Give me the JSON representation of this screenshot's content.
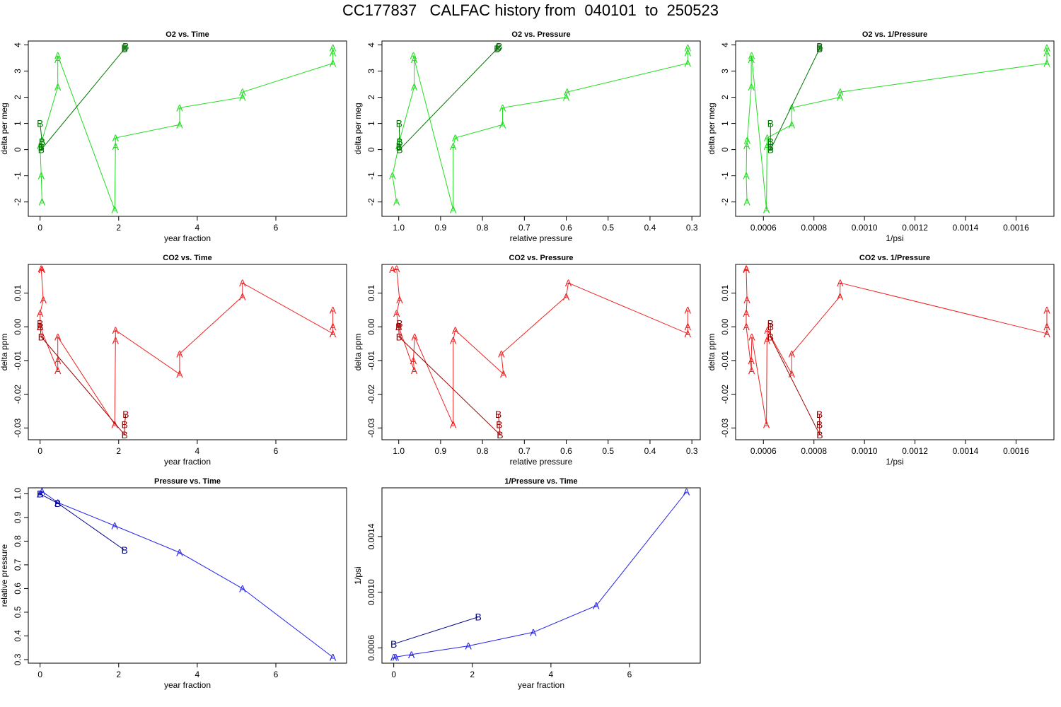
{
  "page_title": "CC177837   CALFAC history from  040101  to  250523",
  "colors": {
    "o2_A": "#22dd22",
    "o2_B": "#007700",
    "co2_A": "#ee2222",
    "co2_B": "#990000",
    "p_A": "#2222ee",
    "p_B": "#000088"
  },
  "chart_data": [
    {
      "type": "scatter",
      "title": "O2 vs. Time",
      "xlabel": "year fraction",
      "ylabel": "delta per meg",
      "xlim": [
        -0.3,
        7.8
      ],
      "ylim": [
        -2.55,
        4.15
      ],
      "xticks": [
        0,
        2,
        4,
        6
      ],
      "yticks": [
        -2,
        -1,
        0,
        1,
        2,
        3,
        4
      ],
      "series": [
        {
          "name": "A",
          "color": "o2_A",
          "points": [
            [
              0.05,
              -2.0
            ],
            [
              0.03,
              -1.0
            ],
            [
              0.0,
              0.15
            ],
            [
              0.05,
              0.35
            ],
            [
              0.45,
              2.4
            ],
            [
              0.45,
              3.45
            ],
            [
              0.45,
              3.6
            ],
            [
              1.9,
              -2.3
            ],
            [
              1.92,
              0.12
            ],
            [
              1.92,
              0.45
            ],
            [
              3.55,
              0.95
            ],
            [
              3.55,
              1.6
            ],
            [
              5.15,
              2.0
            ],
            [
              5.15,
              2.2
            ],
            [
              7.45,
              3.3
            ],
            [
              7.45,
              3.7
            ],
            [
              7.45,
              3.9
            ]
          ]
        },
        {
          "name": "B",
          "color": "o2_B",
          "points": [
            [
              0.0,
              1.0
            ],
            [
              0.05,
              0.3
            ],
            [
              0.03,
              0.1
            ],
            [
              0.03,
              0.0
            ],
            [
              2.15,
              3.85
            ],
            [
              2.15,
              3.9
            ],
            [
              2.18,
              3.95
            ]
          ]
        }
      ]
    },
    {
      "type": "scatter",
      "title": "O2 vs. Pressure",
      "xlabel": "relative pressure",
      "ylabel": "delta per meg",
      "xlim": [
        1.04,
        0.28
      ],
      "ylim": [
        -2.55,
        4.15
      ],
      "xticks": [
        1.0,
        0.9,
        0.8,
        0.7,
        0.6,
        0.5,
        0.4,
        0.3
      ],
      "xtick_labels": [
        "1.0",
        "0.9",
        "0.8",
        "0.7",
        "0.6",
        "0.5",
        "0.4",
        "0.3"
      ],
      "yticks": [
        -2,
        -1,
        0,
        1,
        2,
        3,
        4
      ],
      "series": [
        {
          "name": "A",
          "color": "o2_A",
          "points": [
            [
              1.005,
              -2.0
            ],
            [
              1.015,
              -1.0
            ],
            [
              1.0,
              0.15
            ],
            [
              0.998,
              0.35
            ],
            [
              0.963,
              2.4
            ],
            [
              0.963,
              3.45
            ],
            [
              0.965,
              3.6
            ],
            [
              0.87,
              -2.3
            ],
            [
              0.87,
              0.12
            ],
            [
              0.865,
              0.45
            ],
            [
              0.752,
              0.95
            ],
            [
              0.752,
              1.6
            ],
            [
              0.6,
              2.0
            ],
            [
              0.598,
              2.2
            ],
            [
              0.31,
              3.3
            ],
            [
              0.31,
              3.7
            ],
            [
              0.31,
              3.9
            ]
          ]
        },
        {
          "name": "B",
          "color": "o2_B",
          "points": [
            [
              0.999,
              1.0
            ],
            [
              0.998,
              0.3
            ],
            [
              0.999,
              0.1
            ],
            [
              0.998,
              0.0
            ],
            [
              0.765,
              3.85
            ],
            [
              0.762,
              3.9
            ],
            [
              0.76,
              3.95
            ]
          ]
        }
      ]
    },
    {
      "type": "scatter",
      "title": "O2 vs. 1/Pressure",
      "xlabel": "1/psi",
      "ylabel": "delta per meg",
      "xlim": [
        0.00049,
        0.00175
      ],
      "ylim": [
        -2.55,
        4.15
      ],
      "xticks": [
        0.0006,
        0.0008,
        0.001,
        0.0012,
        0.0014,
        0.0016
      ],
      "xtick_labels": [
        "0.0006",
        "0.0008",
        "0.0010",
        "0.0012",
        "0.0014",
        "0.0016"
      ],
      "yticks": [
        -2,
        -1,
        0,
        1,
        2,
        3,
        4
      ],
      "series": [
        {
          "name": "A",
          "color": "o2_A",
          "points": [
            [
              0.000535,
              -2.0
            ],
            [
              0.000532,
              -1.0
            ],
            [
              0.000534,
              0.15
            ],
            [
              0.000536,
              0.35
            ],
            [
              0.000552,
              2.4
            ],
            [
              0.000552,
              3.45
            ],
            [
              0.000553,
              3.6
            ],
            [
              0.000612,
              -2.3
            ],
            [
              0.000614,
              0.12
            ],
            [
              0.000615,
              0.45
            ],
            [
              0.000712,
              0.95
            ],
            [
              0.000712,
              1.6
            ],
            [
              0.000903,
              2.0
            ],
            [
              0.000904,
              2.2
            ],
            [
              0.001722,
              3.3
            ],
            [
              0.001722,
              3.7
            ],
            [
              0.001722,
              3.9
            ]
          ]
        },
        {
          "name": "B",
          "color": "o2_B",
          "points": [
            [
              0.000628,
              1.0
            ],
            [
              0.000628,
              0.3
            ],
            [
              0.000628,
              0.1
            ],
            [
              0.000628,
              0.0
            ],
            [
              0.000822,
              3.85
            ],
            [
              0.000822,
              3.9
            ],
            [
              0.000823,
              3.95
            ]
          ]
        }
      ]
    },
    {
      "type": "scatter",
      "title": "CO2 vs. Time",
      "xlabel": "year fraction",
      "ylabel": "delta ppm",
      "xlim": [
        -0.3,
        7.8
      ],
      "ylim": [
        -0.0335,
        0.0185
      ],
      "xticks": [
        0,
        2,
        4,
        6
      ],
      "yticks": [
        -0.03,
        -0.02,
        -0.01,
        0.0,
        0.01
      ],
      "ytick_labels": [
        "-0.03",
        "-0.02",
        "-0.01",
        "0.00",
        "0.01"
      ],
      "series": [
        {
          "name": "A",
          "color": "co2_A",
          "points": [
            [
              0.05,
              0.017
            ],
            [
              0.03,
              0.0172
            ],
            [
              0.08,
              0.008
            ],
            [
              0.0,
              0.004
            ],
            [
              0.0,
              0.0
            ],
            [
              0.45,
              -0.013
            ],
            [
              0.45,
              -0.01
            ],
            [
              0.45,
              -0.003
            ],
            [
              1.9,
              -0.029
            ],
            [
              1.92,
              -0.004
            ],
            [
              1.92,
              -0.001
            ],
            [
              3.55,
              -0.014
            ],
            [
              3.55,
              -0.008
            ],
            [
              5.15,
              0.009
            ],
            [
              5.15,
              0.013
            ],
            [
              7.45,
              -0.002
            ],
            [
              7.45,
              0.0
            ],
            [
              7.45,
              0.005
            ]
          ]
        },
        {
          "name": "B",
          "color": "co2_B",
          "points": [
            [
              0.0,
              0.001
            ],
            [
              0.0,
              0.0
            ],
            [
              0.03,
              -0.003
            ],
            [
              2.15,
              -0.032
            ],
            [
              2.15,
              -0.029
            ],
            [
              2.18,
              -0.026
            ]
          ]
        }
      ]
    },
    {
      "type": "scatter",
      "title": "CO2 vs. Pressure",
      "xlabel": "relative pressure",
      "ylabel": "delta ppm",
      "xlim": [
        1.04,
        0.28
      ],
      "ylim": [
        -0.0335,
        0.0185
      ],
      "xticks": [
        1.0,
        0.9,
        0.8,
        0.7,
        0.6,
        0.5,
        0.4,
        0.3
      ],
      "xtick_labels": [
        "1.0",
        "0.9",
        "0.8",
        "0.7",
        "0.6",
        "0.5",
        "0.4",
        "0.3"
      ],
      "yticks": [
        -0.03,
        -0.02,
        -0.01,
        0.0,
        0.01
      ],
      "ytick_labels": [
        "-0.03",
        "-0.02",
        "-0.01",
        "0.00",
        "0.01"
      ],
      "series": [
        {
          "name": "A",
          "color": "co2_A",
          "points": [
            [
              1.015,
              0.017
            ],
            [
              1.005,
              0.0172
            ],
            [
              0.998,
              0.008
            ],
            [
              1.005,
              0.004
            ],
            [
              1.0,
              0.0
            ],
            [
              0.963,
              -0.013
            ],
            [
              0.965,
              -0.01
            ],
            [
              0.962,
              -0.003
            ],
            [
              0.87,
              -0.029
            ],
            [
              0.87,
              -0.004
            ],
            [
              0.865,
              -0.001
            ],
            [
              0.75,
              -0.014
            ],
            [
              0.755,
              -0.008
            ],
            [
              0.6,
              0.009
            ],
            [
              0.595,
              0.013
            ],
            [
              0.31,
              -0.002
            ],
            [
              0.31,
              0.0
            ],
            [
              0.31,
              0.005
            ]
          ]
        },
        {
          "name": "B",
          "color": "co2_B",
          "points": [
            [
              0.998,
              0.001
            ],
            [
              1.0,
              0.0
            ],
            [
              0.999,
              -0.003
            ],
            [
              0.758,
              -0.032
            ],
            [
              0.76,
              -0.029
            ],
            [
              0.762,
              -0.026
            ]
          ]
        }
      ]
    },
    {
      "type": "scatter",
      "title": "CO2 vs. 1/Pressure",
      "xlabel": "1/psi",
      "ylabel": "delta ppm",
      "xlim": [
        0.00049,
        0.00175
      ],
      "ylim": [
        -0.0335,
        0.0185
      ],
      "xticks": [
        0.0006,
        0.0008,
        0.001,
        0.0012,
        0.0014,
        0.0016
      ],
      "xtick_labels": [
        "0.0006",
        "0.0008",
        "0.0010",
        "0.0012",
        "0.0014",
        "0.0016"
      ],
      "yticks": [
        -0.03,
        -0.02,
        -0.01,
        0.0,
        0.01
      ],
      "ytick_labels": [
        "-0.03",
        "-0.02",
        "-0.01",
        "0.00",
        "0.01"
      ],
      "series": [
        {
          "name": "A",
          "color": "co2_A",
          "points": [
            [
              0.000533,
              0.017
            ],
            [
              0.000532,
              0.0172
            ],
            [
              0.000535,
              0.008
            ],
            [
              0.000532,
              0.004
            ],
            [
              0.000532,
              0.0
            ],
            [
              0.000553,
              -0.013
            ],
            [
              0.000552,
              -0.01
            ],
            [
              0.000554,
              -0.003
            ],
            [
              0.000612,
              -0.029
            ],
            [
              0.000614,
              -0.004
            ],
            [
              0.000616,
              -0.001
            ],
            [
              0.000712,
              -0.014
            ],
            [
              0.000712,
              -0.008
            ],
            [
              0.000903,
              0.009
            ],
            [
              0.000904,
              0.013
            ],
            [
              0.001722,
              -0.002
            ],
            [
              0.001722,
              0.0
            ],
            [
              0.001722,
              0.005
            ]
          ]
        },
        {
          "name": "B",
          "color": "co2_B",
          "points": [
            [
              0.000628,
              0.001
            ],
            [
              0.000628,
              0.0
            ],
            [
              0.000628,
              -0.003
            ],
            [
              0.000823,
              -0.032
            ],
            [
              0.000822,
              -0.029
            ],
            [
              0.000822,
              -0.026
            ]
          ]
        }
      ]
    },
    {
      "type": "scatter",
      "title": "Pressure vs. Time",
      "xlabel": "year fraction",
      "ylabel": "relative pressure",
      "xlim": [
        -0.3,
        7.8
      ],
      "ylim": [
        0.285,
        1.025
      ],
      "xticks": [
        0,
        2,
        4,
        6
      ],
      "yticks": [
        0.3,
        0.4,
        0.5,
        0.6,
        0.7,
        0.8,
        0.9,
        1.0
      ],
      "ytick_labels": [
        "0.3",
        "0.4",
        "0.5",
        "0.6",
        "0.7",
        "0.8",
        "0.9",
        "1.0"
      ],
      "series": [
        {
          "name": "A",
          "color": "p_A",
          "points": [
            [
              0.0,
              1.0
            ],
            [
              0.05,
              1.01
            ],
            [
              0.45,
              0.963
            ],
            [
              1.9,
              0.865
            ],
            [
              3.55,
              0.752
            ],
            [
              5.15,
              0.6
            ],
            [
              7.45,
              0.31
            ]
          ]
        },
        {
          "name": "B",
          "color": "p_B",
          "points": [
            [
              0.0,
              0.999
            ],
            [
              0.45,
              0.96
            ],
            [
              2.15,
              0.762
            ]
          ]
        }
      ]
    },
    {
      "type": "scatter",
      "title": "1/Pressure vs. Time",
      "xlabel": "year fraction",
      "ylabel": "1/psi",
      "xlim": [
        -0.3,
        7.8
      ],
      "ylim": [
        0.00049,
        0.00175
      ],
      "xticks": [
        0,
        2,
        4,
        6
      ],
      "yticks": [
        0.0006,
        0.001,
        0.0014
      ],
      "ytick_labels": [
        "0.0006",
        "0.0010",
        "0.0014"
      ],
      "series": [
        {
          "name": "A",
          "color": "p_A",
          "points": [
            [
              0.0,
              0.000532
            ],
            [
              0.05,
              0.000534
            ],
            [
              0.45,
              0.000552
            ],
            [
              1.9,
              0.000614
            ],
            [
              3.55,
              0.000712
            ],
            [
              5.15,
              0.000903
            ],
            [
              7.45,
              0.001722
            ]
          ]
        },
        {
          "name": "B",
          "color": "p_B",
          "points": [
            [
              0.0,
              0.000628
            ],
            [
              2.15,
              0.000822
            ]
          ]
        }
      ]
    }
  ]
}
